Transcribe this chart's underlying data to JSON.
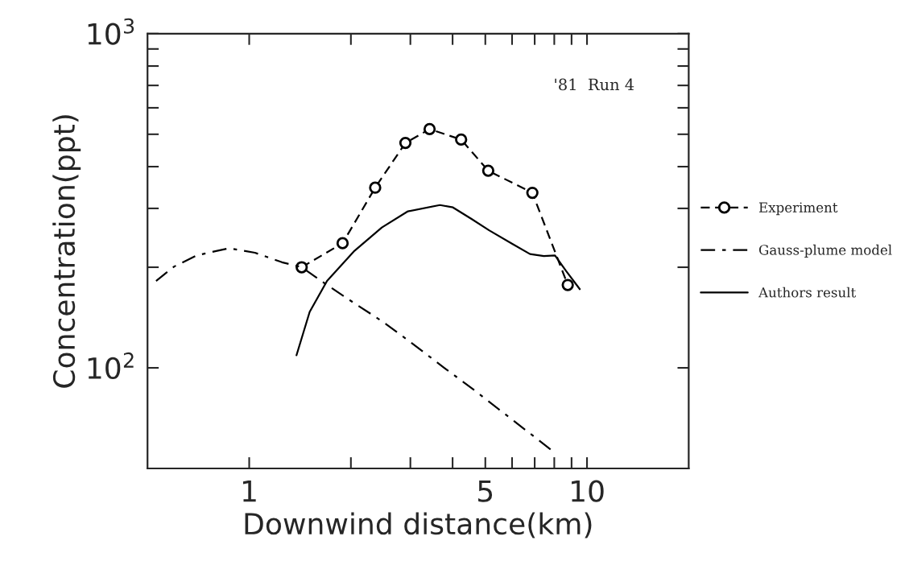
{
  "chart_data": {
    "type": "line",
    "xlabel": "Downwind distance(km)",
    "ylabel": "Concentration(ppt)",
    "annotations": [
      "'81  Run 4"
    ],
    "log": "xy",
    "grid": false,
    "legend": "right",
    "xlim": [
      0.5,
      20
    ],
    "ylim": [
      50,
      1000
    ],
    "xticks": [
      1,
      {
        "value": 2,
        "label": null
      },
      {
        "value": 3,
        "label": null
      },
      {
        "value": 4,
        "label": null
      },
      5,
      {
        "value": 6,
        "label": null
      },
      {
        "value": 7,
        "label": null
      },
      {
        "value": 8,
        "label": null
      },
      {
        "value": 9,
        "label": null
      },
      10
    ],
    "yticks": [
      {
        "value": 100,
        "label": "10$^{2}$"
      },
      {
        "value": 200,
        "label": null
      },
      {
        "value": 300,
        "label": null
      },
      {
        "value": 400,
        "label": null
      },
      {
        "value": 500,
        "label": null
      },
      {
        "value": 600,
        "label": null
      },
      {
        "value": 700,
        "label": null
      },
      {
        "value": 800,
        "label": null
      },
      {
        "value": 900,
        "label": null
      },
      {
        "value": 1000,
        "label": "10$^{3}$"
      }
    ],
    "series": [
      {
        "name": "Experiment",
        "color": "#000000",
        "line_style": "dashed",
        "marker": "circle",
        "x": [
          1.43,
          1.89,
          2.36,
          2.9,
          3.42,
          4.24,
          5.1,
          6.89,
          8.77
        ],
        "values": [
          200,
          236,
          346,
          471,
          518,
          482,
          389,
          334,
          177
        ]
      },
      {
        "name": "Gauss-plume model",
        "color": "#000000",
        "line_style": "dashdot",
        "marker": "none",
        "x": [
          0.53,
          0.6,
          0.7,
          0.87,
          1.04,
          1.25,
          1.43,
          1.7,
          2.05,
          2.47,
          2.95,
          3.78,
          4.55,
          7.8
        ],
        "values": [
          182,
          201,
          217,
          228,
          221,
          207,
          200,
          177,
          156,
          138,
          121,
          100,
          87,
          57
        ]
      },
      {
        "name": "Authors result",
        "color": "#000000",
        "line_style": "solid",
        "marker": "none",
        "x": [
          1.38,
          1.51,
          1.7,
          2.05,
          2.47,
          2.95,
          3.67,
          4.01,
          4.55,
          5.13,
          6.01,
          6.78,
          7.45,
          8.04,
          8.67,
          9.52
        ],
        "values": [
          109,
          147,
          182,
          224,
          263,
          294,
          307,
          302,
          279,
          258,
          235,
          219,
          216,
          217,
          195,
          172
        ]
      }
    ]
  }
}
